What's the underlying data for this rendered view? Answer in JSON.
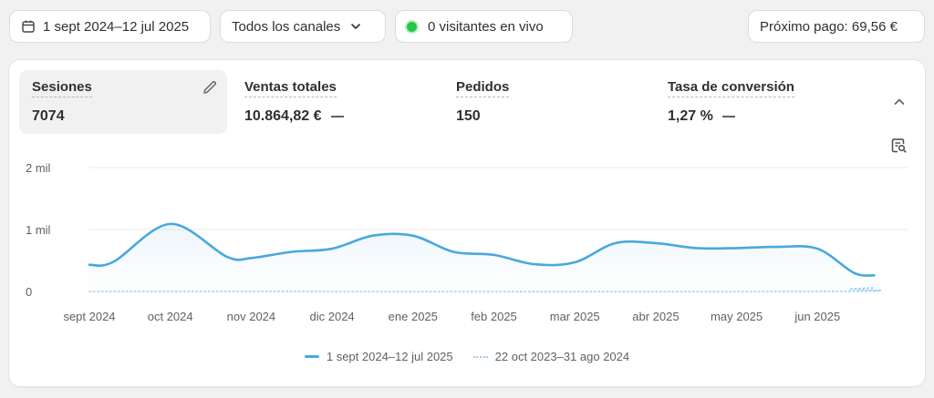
{
  "toolbar": {
    "date_range": "1 sept 2024–12 jul 2025",
    "channel": "Todos los canales",
    "live_visitors": "0 visitantes en vivo",
    "next_payment": "Próximo pago: 69,56 €"
  },
  "metrics": [
    {
      "label": "Sesiones",
      "value": "7074"
    },
    {
      "label": "Ventas totales",
      "value": "10.864,82 €"
    },
    {
      "label": "Pedidos",
      "value": "150"
    },
    {
      "label": "Tasa de conversión",
      "value": "1,27 %"
    }
  ],
  "colors": {
    "primary_series": "#4aa8dd",
    "comparison_series": "#9ecfee",
    "live_dot": "#29c44a"
  },
  "chart_data": {
    "type": "line",
    "y_ticks": [
      "2 mil",
      "1 mil",
      "0"
    ],
    "ylim": [
      0,
      2000
    ],
    "x_ticks": [
      "sept 2024",
      "oct 2024",
      "nov 2024",
      "dic 2024",
      "ene 2025",
      "feb 2025",
      "mar 2025",
      "abr 2025",
      "may 2025",
      "jun 2025"
    ],
    "grid": true,
    "legend_position": "bottom-center",
    "series": [
      {
        "name": "1 sept 2024–12 jul 2025",
        "style": "solid",
        "x": [
          0,
          0.3,
          1,
          1.7,
          2,
          2.5,
          3,
          3.5,
          4,
          4.5,
          5,
          5.5,
          6,
          6.5,
          7,
          7.5,
          8,
          8.5,
          9,
          9.45,
          9.7
        ],
        "values": [
          430,
          480,
          1090,
          560,
          540,
          640,
          690,
          900,
          900,
          640,
          590,
          440,
          470,
          780,
          780,
          700,
          700,
          720,
          690,
          300,
          260
        ]
      },
      {
        "name": "22 oct 2023–31 ago 2024",
        "style": "dotted",
        "x": [
          0,
          9.0,
          9.4,
          9.7
        ],
        "values": [
          0,
          0,
          40,
          60
        ]
      }
    ]
  }
}
